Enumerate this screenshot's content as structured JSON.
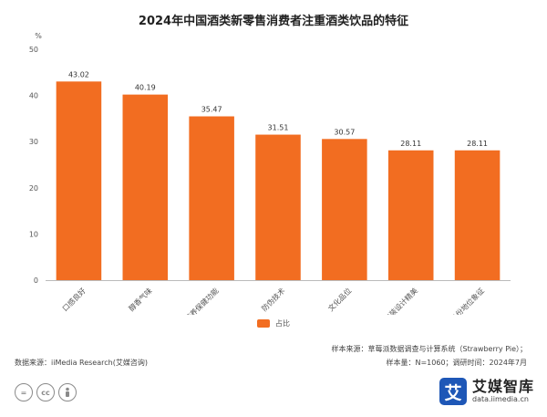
{
  "chart_data": {
    "type": "bar",
    "title": "2024年中国酒类新零售消费者注重酒类饮品的特征",
    "ylabel": "%",
    "xlabel": "",
    "ylim": [
      0,
      50
    ],
    "yticks": [
      0,
      10,
      20,
      30,
      40,
      50
    ],
    "grid": false,
    "legend_position": "bottom-center",
    "categories": [
      "口感良好",
      "醇香气味",
      "营养保健功能",
      "防伪技术",
      "文化品位",
      "包装设计精美",
      "身份地位象征"
    ],
    "series": [
      {
        "name": "占比",
        "values": [
          43.02,
          40.19,
          35.47,
          31.51,
          30.57,
          28.11,
          28.11
        ],
        "color": "#f26d21"
      }
    ]
  },
  "footer": {
    "source": "数据来源：iiMedia Research(艾媒咨询)",
    "sample_line1": "样本来源：草莓派数据调查与计算系统（Strawberry Pie）；",
    "sample_line2": "样本量：N=1060；调研时间：2024年7月"
  },
  "icons": [
    "equals-icon",
    "cc-icon",
    "person-icon"
  ],
  "brand": {
    "logo_char": "艾",
    "name": "艾媒智库",
    "url": "data.iimedia.cn",
    "color": "#1e57b7"
  }
}
